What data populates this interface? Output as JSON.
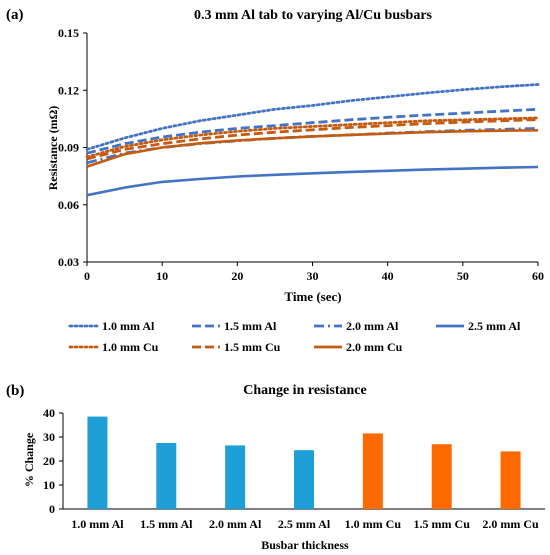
{
  "panel_a_label": "(a)",
  "panel_b_label": "(b)",
  "chart_data": [
    {
      "type": "line",
      "title": "0.3 mm Al tab to varying Al/Cu busbars",
      "xlabel": "Time (sec)",
      "ylabel": "Resistance (mΩ)",
      "xlim": [
        0,
        60
      ],
      "ylim": [
        0.03,
        0.15
      ],
      "x_ticks": [
        0,
        10,
        20,
        30,
        40,
        50,
        60
      ],
      "y_ticks": [
        0.03,
        0.06,
        0.09,
        0.12,
        0.15
      ],
      "y_tick_labels": [
        "0.03",
        "0.06",
        "0.09",
        "0.12",
        "0.15"
      ],
      "grid": false,
      "legend_position": "bottom",
      "x": [
        0,
        5,
        10,
        15,
        20,
        25,
        30,
        35,
        40,
        45,
        50,
        55,
        60
      ],
      "series": [
        {
          "name": "1.0 mm Al",
          "color": "#4472c4",
          "style": "dotted",
          "values": [
            0.089,
            0.095,
            0.1,
            0.104,
            0.107,
            0.11,
            0.112,
            0.1145,
            0.1165,
            0.1185,
            0.1203,
            0.1218,
            0.123
          ]
        },
        {
          "name": "1.5 mm Al",
          "color": "#4472c4",
          "style": "dashed",
          "values": [
            0.087,
            0.092,
            0.0955,
            0.098,
            0.1,
            0.1015,
            0.103,
            0.1045,
            0.1058,
            0.107,
            0.108,
            0.109,
            0.11
          ]
        },
        {
          "name": "2.0 mm Al",
          "color": "#4472c4",
          "style": "dashdot",
          "values": [
            0.082,
            0.087,
            0.09,
            0.092,
            0.0935,
            0.0948,
            0.0958,
            0.0966,
            0.0975,
            0.0983,
            0.099,
            0.0995,
            0.1
          ]
        },
        {
          "name": "2.5 mm Al",
          "color": "#4472c4",
          "style": "solid",
          "values": [
            0.065,
            0.069,
            0.072,
            0.0735,
            0.0748,
            0.0757,
            0.0765,
            0.0772,
            0.0778,
            0.0784,
            0.0789,
            0.0794,
            0.0798
          ]
        },
        {
          "name": "1.0 mm Cu",
          "color": "#c55a11",
          "style": "dotted",
          "values": [
            0.085,
            0.0905,
            0.094,
            0.0965,
            0.0985,
            0.1,
            0.101,
            0.102,
            0.103,
            0.104,
            0.1045,
            0.105,
            0.1055
          ]
        },
        {
          "name": "1.5 mm Cu",
          "color": "#c55a11",
          "style": "dashed",
          "values": [
            0.084,
            0.089,
            0.092,
            0.0945,
            0.0965,
            0.098,
            0.0993,
            0.1005,
            0.1015,
            0.1025,
            0.1033,
            0.104,
            0.1046
          ]
        },
        {
          "name": "2.0 mm Cu",
          "color": "#c55a11",
          "style": "solid",
          "values": [
            0.08,
            0.0865,
            0.09,
            0.0922,
            0.0937,
            0.0948,
            0.0958,
            0.0966,
            0.0973,
            0.098,
            0.0985,
            0.0988,
            0.099
          ]
        }
      ]
    },
    {
      "type": "bar",
      "title": "Change in resistance",
      "xlabel": "Busbar thickness",
      "ylabel": "% Change",
      "ylim": [
        0,
        40
      ],
      "y_ticks": [
        0,
        10,
        20,
        30,
        40
      ],
      "grid": false,
      "categories": [
        "1.0 mm Al",
        "1.5 mm Al",
        "2.0 mm Al",
        "2.5 mm Al",
        "1.0 mm Cu",
        "1.5 mm Cu",
        "2.0 mm Cu"
      ],
      "values": [
        38.5,
        27.5,
        26.5,
        24.5,
        31.5,
        27.0,
        24.0
      ],
      "colors": [
        "#1e9fd6",
        "#1e9fd6",
        "#1e9fd6",
        "#1e9fd6",
        "#ff6a00",
        "#ff6a00",
        "#ff6a00"
      ]
    }
  ]
}
